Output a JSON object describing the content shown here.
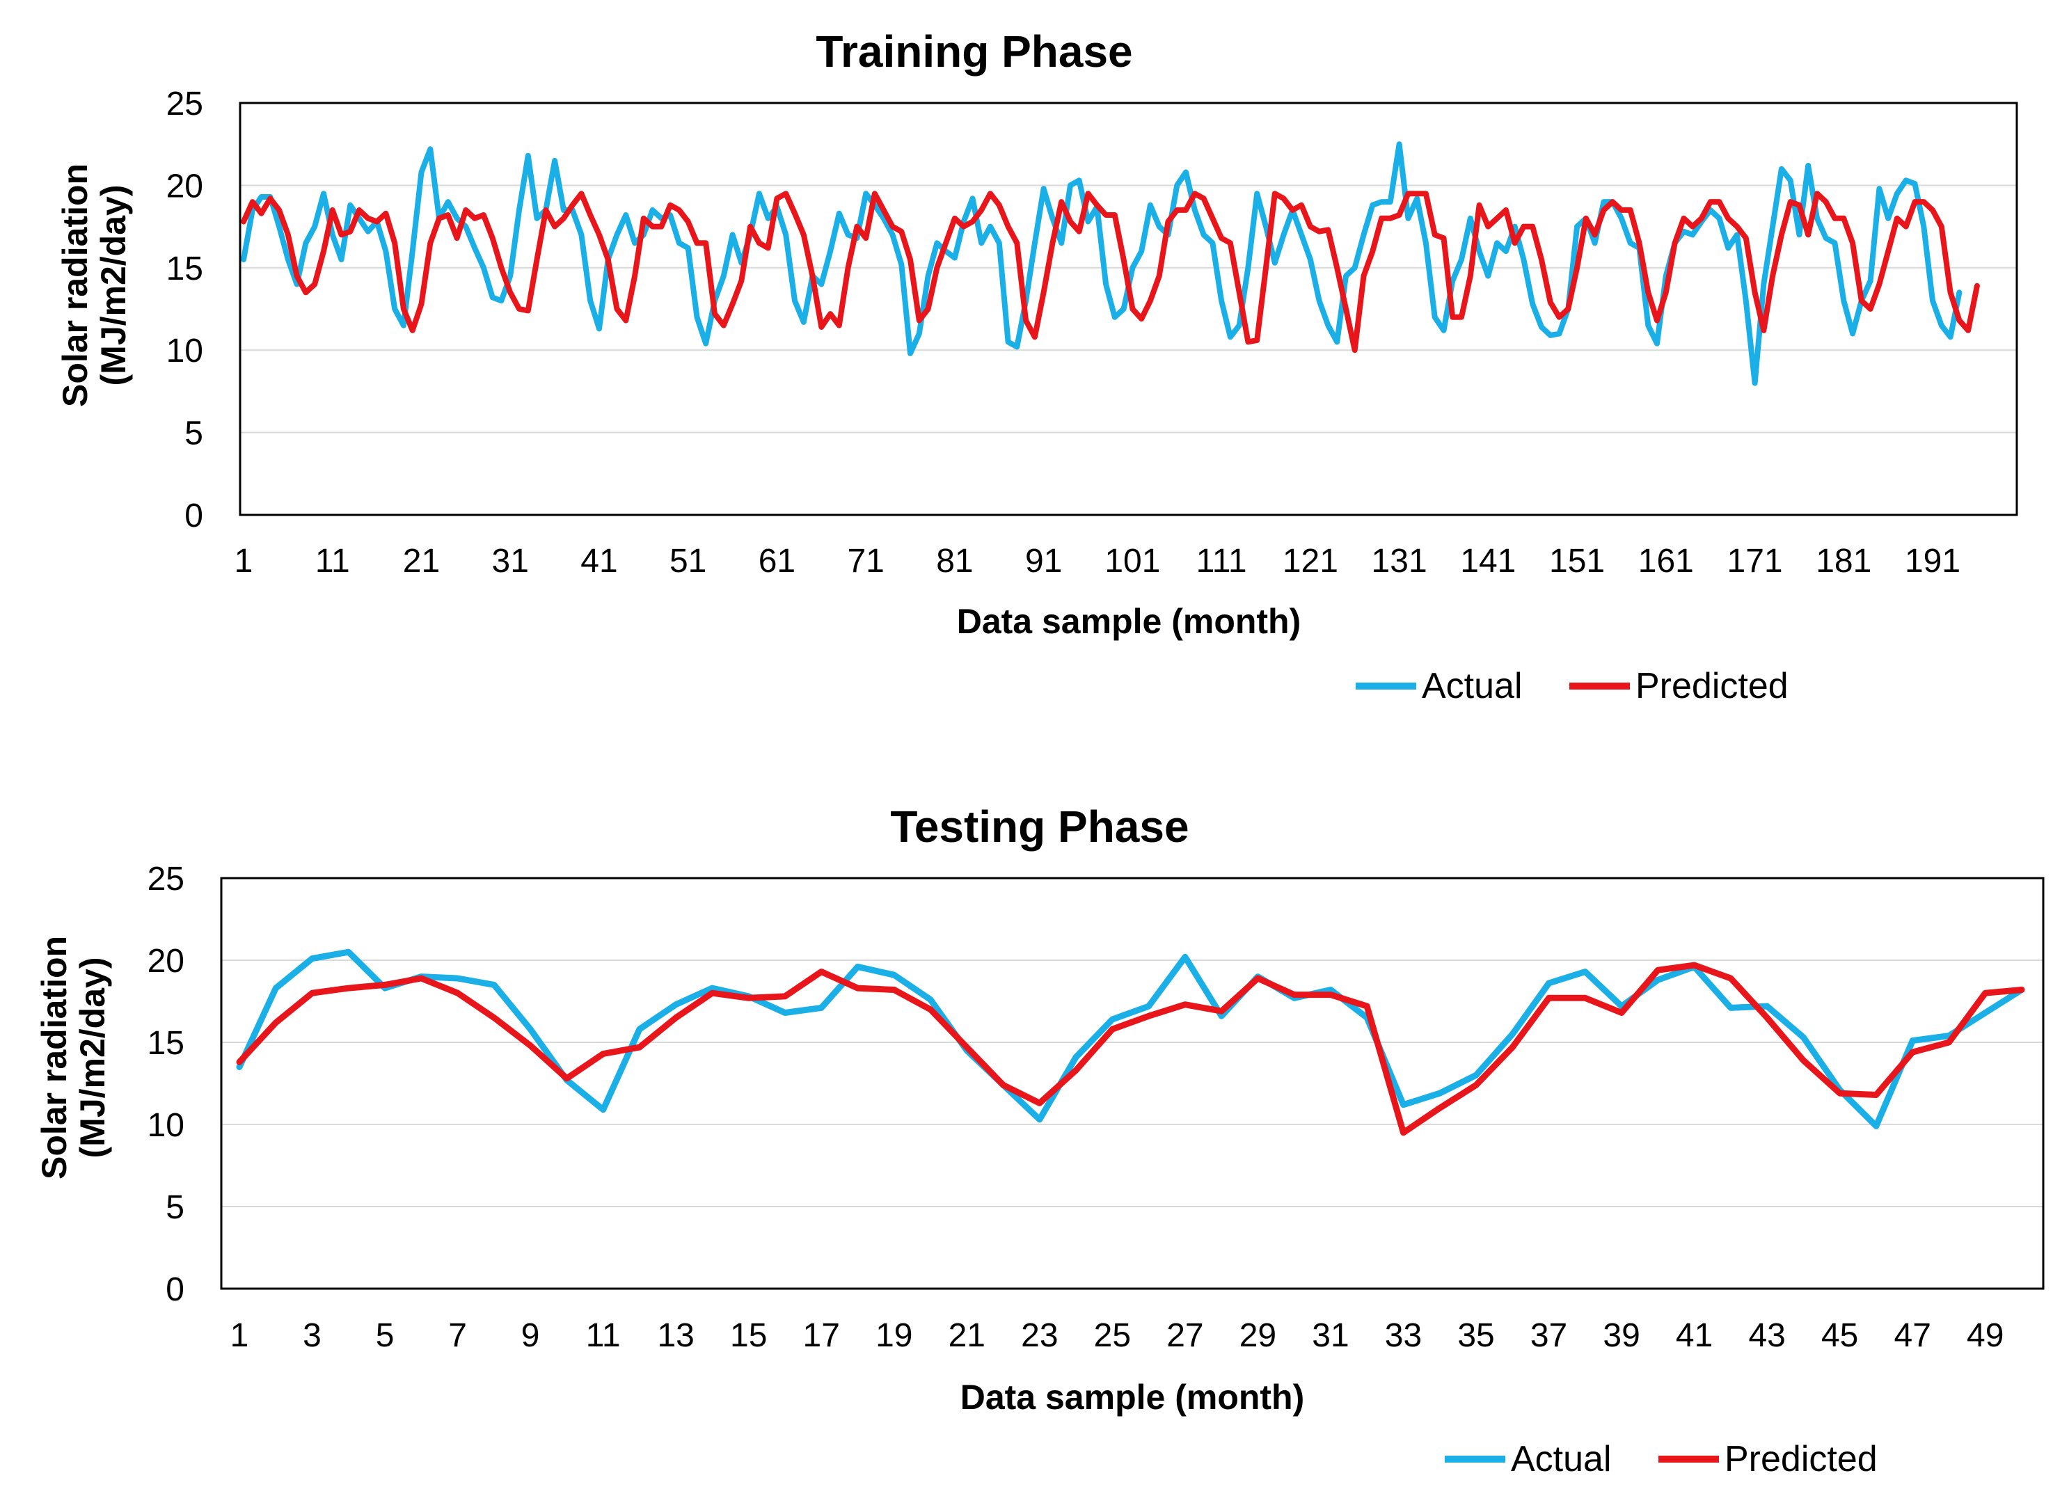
{
  "colors": {
    "actual": "#1AAFE6",
    "predicted": "#E8161B",
    "grid": "#d9d9d9"
  },
  "chart_data": [
    {
      "type": "line",
      "title": "Training Phase",
      "xlabel": "Data sample (month)",
      "ylabel_line1": "Solar radiation",
      "ylabel_line2": "(MJ/m2/day)",
      "ylim": [
        0,
        25
      ],
      "yticks": [
        0,
        5,
        10,
        15,
        20,
        25
      ],
      "xlim": [
        1,
        200
      ],
      "xticks": [
        1,
        11,
        21,
        31,
        41,
        51,
        61,
        71,
        81,
        91,
        101,
        111,
        121,
        131,
        141,
        151,
        161,
        171,
        181,
        191
      ],
      "legend": [
        "Actual",
        "Predicted"
      ],
      "series": [
        {
          "name": "Actual",
          "values": [
            15.5,
            18.5,
            19.3,
            19.3,
            17.5,
            15.5,
            14.0,
            16.5,
            17.5,
            19.5,
            17.0,
            15.5,
            18.8,
            18.0,
            17.2,
            17.8,
            16.0,
            12.5,
            11.5,
            16.0,
            20.8,
            22.2,
            18.0,
            19.0,
            18.0,
            17.5,
            16.2,
            15.0,
            13.2,
            13.0,
            14.5,
            18.5,
            21.8,
            18.0,
            18.5,
            21.5,
            18.5,
            18.5,
            17.0,
            13.0,
            11.3,
            15.5,
            17.0,
            18.2,
            16.5,
            17.0,
            18.5,
            18.0,
            18.2,
            16.5,
            16.2,
            12.0,
            10.4,
            13.0,
            14.5,
            17.0,
            15.3,
            17.0,
            19.5,
            18.0,
            18.7,
            17.0,
            13.0,
            11.7,
            14.5,
            14.0,
            16.0,
            18.3,
            17.0,
            16.8,
            19.5,
            18.8,
            18.0,
            17.0,
            15.2,
            9.8,
            11.0,
            14.5,
            16.5,
            16.0,
            15.6,
            17.8,
            19.2,
            16.5,
            17.5,
            16.5,
            10.5,
            10.2,
            13.0,
            16.5,
            19.8,
            18.0,
            16.5,
            20.0,
            20.3,
            17.8,
            18.7,
            14.0,
            12.0,
            12.5,
            15.0,
            16.0,
            18.8,
            17.5,
            17.0,
            20.0,
            20.8,
            18.5,
            17.0,
            16.5,
            13.0,
            10.8,
            11.5,
            15.0,
            19.5,
            17.5,
            15.3,
            17.0,
            18.5,
            17.0,
            15.5,
            13.0,
            11.5,
            10.5,
            14.5,
            15.0,
            17.0,
            18.8,
            19.0,
            19.0,
            22.5,
            18.0,
            19.2,
            16.5,
            12.0,
            11.2,
            14.2,
            15.5,
            18.0,
            16.0,
            14.5,
            16.5,
            16.0,
            17.5,
            15.5,
            12.8,
            11.4,
            10.9,
            11.0,
            12.5,
            17.5,
            18.0,
            16.5,
            19.0,
            19.0,
            18.0,
            16.5,
            16.2,
            11.5,
            10.4,
            14.5,
            16.5,
            17.2,
            17.0,
            17.8,
            18.5,
            18.0,
            16.2,
            17.0,
            13.0,
            8.0,
            14.0,
            17.5,
            21.0,
            20.3,
            17.0,
            21.2,
            18.0,
            16.8,
            16.5,
            13.0,
            11.0,
            13.0,
            14.2,
            19.8,
            18.0,
            19.5,
            20.3,
            20.1,
            17.5,
            13.0,
            11.5,
            10.8,
            13.5
          ]
        },
        {
          "name": "Predicted",
          "values": [
            17.8,
            19.0,
            18.3,
            19.2,
            18.5,
            17.0,
            14.5,
            13.5,
            14.0,
            16.0,
            18.5,
            17.0,
            17.2,
            18.5,
            18.0,
            17.8,
            18.3,
            16.5,
            12.5,
            11.2,
            12.8,
            16.5,
            18.0,
            18.2,
            16.8,
            18.5,
            18.0,
            18.2,
            16.8,
            15.0,
            13.5,
            12.5,
            12.4,
            15.5,
            18.5,
            17.5,
            18.0,
            18.8,
            19.5,
            18.2,
            17.0,
            15.5,
            12.5,
            11.8,
            14.5,
            18.0,
            17.5,
            17.5,
            18.8,
            18.5,
            17.8,
            16.5,
            16.5,
            12.2,
            11.5,
            12.8,
            14.2,
            17.5,
            16.5,
            16.2,
            19.2,
            19.5,
            18.3,
            17.0,
            14.5,
            11.4,
            12.2,
            11.5,
            15.0,
            17.5,
            16.8,
            19.5,
            18.5,
            17.5,
            17.2,
            15.5,
            11.8,
            12.5,
            15.0,
            16.5,
            18.0,
            17.5,
            17.8,
            18.5,
            19.5,
            18.8,
            17.5,
            16.5,
            11.8,
            10.8,
            13.5,
            16.5,
            19.0,
            17.8,
            17.2,
            19.5,
            18.8,
            18.2,
            18.2,
            15.5,
            12.5,
            11.9,
            13.0,
            14.5,
            17.8,
            18.5,
            18.5,
            19.5,
            19.2,
            18.0,
            16.8,
            16.5,
            13.5,
            10.5,
            10.6,
            15.0,
            19.5,
            19.2,
            18.5,
            18.8,
            17.5,
            17.2,
            17.3,
            15.0,
            12.5,
            10.0,
            14.5,
            16.0,
            18.0,
            18.0,
            18.2,
            19.5,
            19.5,
            19.5,
            17.0,
            16.8,
            12.0,
            12.0,
            14.5,
            18.8,
            17.5,
            18.0,
            18.5,
            16.5,
            17.5,
            17.5,
            15.5,
            12.9,
            12.0,
            12.5,
            15.0,
            18.0,
            17.0,
            18.5,
            19.0,
            18.5,
            18.5,
            16.5,
            13.5,
            11.8,
            13.5,
            16.5,
            18.0,
            17.5,
            18.0,
            19.0,
            19.0,
            18.0,
            17.5,
            16.8,
            13.5,
            11.2,
            14.5,
            17.0,
            19.0,
            18.8,
            17.0,
            19.5,
            19.0,
            18.0,
            18.0,
            16.5,
            13.0,
            12.5,
            14.0,
            16.0,
            18.0,
            17.5,
            19.0,
            19.0,
            18.5,
            17.5,
            13.5,
            11.8,
            11.2,
            13.9
          ]
        }
      ]
    },
    {
      "type": "line",
      "title": "Testing Phase",
      "xlabel": "Data sample (month)",
      "ylabel_line1": "Solar radiation",
      "ylabel_line2": "(MJ/m2/day)",
      "ylim": [
        0,
        25
      ],
      "yticks": [
        0,
        5,
        10,
        15,
        20,
        25
      ],
      "xlim": [
        1,
        50
      ],
      "xticks": [
        1,
        3,
        5,
        7,
        9,
        11,
        13,
        15,
        17,
        19,
        21,
        23,
        25,
        27,
        29,
        31,
        33,
        35,
        37,
        39,
        41,
        43,
        45,
        47,
        49
      ],
      "legend": [
        "Actual",
        "Predicted"
      ],
      "series": [
        {
          "name": "Actual",
          "values": [
            13.5,
            18.3,
            20.1,
            20.5,
            18.3,
            19.0,
            18.9,
            18.5,
            15.8,
            12.7,
            10.9,
            15.8,
            17.3,
            18.3,
            17.8,
            16.8,
            17.1,
            19.6,
            19.1,
            17.6,
            14.5,
            12.4,
            10.3,
            14.1,
            16.4,
            17.2,
            20.2,
            16.6,
            19.0,
            17.7,
            18.2,
            16.5,
            11.2,
            11.9,
            13.0,
            15.5,
            18.6,
            19.3,
            17.2,
            18.8,
            19.6,
            17.1,
            17.2,
            15.3,
            12.1,
            9.9,
            15.1,
            15.4,
            16.8,
            18.2
          ]
        },
        {
          "name": "Predicted",
          "values": [
            13.8,
            16.2,
            18.0,
            18.3,
            18.5,
            18.9,
            18.0,
            16.5,
            14.8,
            12.8,
            14.3,
            14.7,
            16.5,
            18.0,
            17.7,
            17.8,
            19.3,
            18.3,
            18.2,
            17.0,
            14.7,
            12.4,
            11.3,
            13.3,
            15.8,
            16.6,
            17.3,
            16.9,
            18.9,
            17.9,
            17.9,
            17.2,
            9.5,
            11.0,
            12.4,
            14.7,
            17.7,
            17.7,
            16.8,
            19.4,
            19.7,
            18.9,
            16.5,
            13.9,
            11.9,
            11.8,
            14.4,
            15.0,
            18.0,
            18.2
          ]
        }
      ]
    }
  ]
}
